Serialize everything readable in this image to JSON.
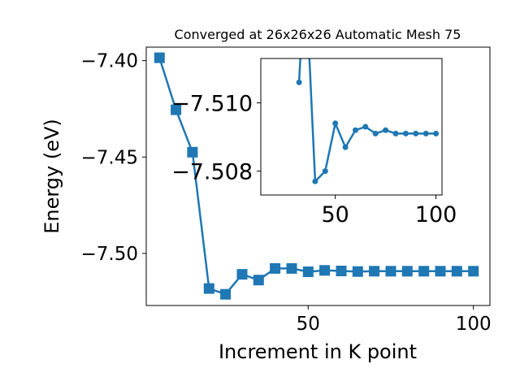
{
  "chart_data": [
    {
      "type": "line",
      "title": "Converged at 26x26x26 Automatic Mesh 75",
      "xlabel": "Increment in K point",
      "ylabel": "Energy (eV)",
      "xlim": [
        1,
        105
      ],
      "ylim": [
        -7.527,
        -7.393
      ],
      "x_ticks": [
        50,
        100
      ],
      "x_tick_labels": [
        "50",
        "100"
      ],
      "y_ticks": [
        -7.4,
        -7.45,
        -7.5
      ],
      "y_tick_labels": [
        "−7.40",
        "−7.45",
        "−7.50"
      ],
      "grid": false,
      "marker": "square",
      "color": "#1f77b4",
      "series": [
        {
          "x": [
            5,
            10,
            15,
            20,
            25,
            30,
            35,
            40,
            45,
            50,
            55,
            60,
            65,
            70,
            75,
            80,
            85,
            90,
            95,
            100
          ],
          "y": [
            -7.3985,
            -7.4255,
            -7.4475,
            -7.5182,
            -7.5212,
            -7.5108,
            -7.5138,
            -7.5078,
            -7.5078,
            -7.5095,
            -7.5088,
            -7.5091,
            -7.5094,
            -7.5092,
            -7.5092,
            -7.5092,
            -7.5092,
            -7.5092,
            -7.5092,
            -7.5092
          ]
        }
      ]
    },
    {
      "type": "line",
      "title": "",
      "xlabel": "",
      "ylabel": "",
      "xlim": [
        13,
        103
      ],
      "ylim": [
        -7.5073,
        -7.5113
      ],
      "x_ticks": [
        50,
        100
      ],
      "x_tick_labels": [
        "50",
        "100"
      ],
      "y_ticks": [
        -7.51,
        -7.508
      ],
      "y_tick_labels": [
        "−7.510",
        "−7.508"
      ],
      "grid": false,
      "marker": "circle",
      "color": "#1f77b4",
      "series": [
        {
          "x": [
            32,
            35,
            40,
            45,
            50,
            55,
            60,
            65,
            70,
            75,
            80,
            85,
            90,
            95,
            100
          ],
          "y": [
            -7.5106,
            -7.514,
            -7.5077,
            -7.508,
            -7.5094,
            -7.5087,
            -7.5092,
            -7.5093,
            -7.5091,
            -7.5092,
            -7.5091,
            -7.5091,
            -7.5091,
            -7.5091,
            -7.5091
          ]
        }
      ]
    }
  ]
}
